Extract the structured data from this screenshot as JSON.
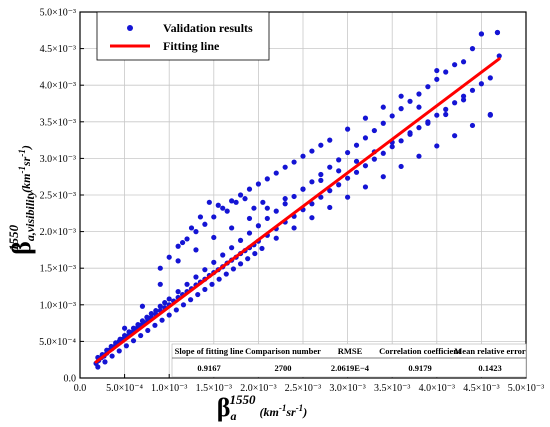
{
  "chart_data": {
    "type": "scatter",
    "xlabel": {
      "base": "β",
      "sub": "a",
      "sup": "1550",
      "unit": "(km",
      "unit_sup1": "-1",
      "unit_mid": "sr",
      "unit_sup2": "-1",
      "unit_end": ")"
    },
    "ylabel": {
      "base": "β",
      "sub": "a,visibility",
      "sup": "1550",
      "unit": "(km",
      "unit_sup1": "-1",
      "unit_mid": "sr",
      "unit_sup2": "-1",
      "unit_end": ")"
    },
    "xlim": [
      0,
      0.005
    ],
    "ylim": [
      0,
      0.005
    ],
    "x_ticks": [
      0,
      0.0005,
      0.001,
      0.0015,
      0.002,
      0.0025,
      0.003,
      0.0035,
      0.004,
      0.0045,
      0.005
    ],
    "x_tick_labels": [
      "0.0",
      "5.0×10⁻⁴",
      "1.0×10⁻³",
      "1.5×10⁻³",
      "2.0×10⁻³",
      "2.5×10⁻³",
      "3.0×10⁻³",
      "3.5×10⁻³",
      "4.0×10⁻³",
      "4.5×10⁻³",
      "5.0×10⁻³"
    ],
    "y_ticks": [
      0,
      0.0005,
      0.001,
      0.0015,
      0.002,
      0.0025,
      0.003,
      0.0035,
      0.004,
      0.0045,
      0.005
    ],
    "y_tick_labels": [
      "0.0",
      "5.0×10⁻⁴",
      "1.0×10⁻³",
      "1.5×10⁻³",
      "2.0×10⁻³",
      "2.5×10⁻³",
      "3.0×10⁻³",
      "3.5×10⁻³",
      "4.0×10⁻³",
      "4.5×10⁻³",
      "5.0×10⁻³"
    ],
    "grid": true,
    "legend_position": "top-left",
    "series": [
      {
        "name": "Validation results",
        "kind": "scatter",
        "color": "#1414d4",
        "x": [
          0.00018,
          0.00021,
          0.00024,
          0.00027,
          0.0003,
          0.00033,
          0.00036,
          0.0004,
          0.00044,
          0.00048,
          0.00052,
          0.00056,
          0.0006,
          0.00064,
          0.00068,
          0.00072,
          0.00076,
          0.0008,
          0.00085,
          0.0009,
          0.00095,
          0.001,
          0.00105,
          0.0011,
          0.00115,
          0.0012,
          0.00125,
          0.0013,
          0.00135,
          0.0014,
          0.00145,
          0.0015,
          0.00155,
          0.0016,
          0.00165,
          0.0017,
          0.00175,
          0.0018,
          0.00185,
          0.0019,
          0.00195,
          0.002,
          0.0021,
          0.0022,
          0.0023,
          0.0024,
          0.0025,
          0.0026,
          0.0027,
          0.0028,
          0.0029,
          0.003,
          0.0031,
          0.0032,
          0.0033,
          0.0034,
          0.0035,
          0.0036,
          0.0037,
          0.0038,
          0.0039,
          0.004,
          0.0041,
          0.0042,
          0.0043,
          0.0044,
          0.0045,
          0.0046,
          0.00468,
          0.0002,
          0.00025,
          0.0003,
          0.00035,
          0.0004,
          0.00045,
          0.0005,
          0.00055,
          0.0006,
          0.00065,
          0.0007,
          0.00075,
          0.0008,
          0.00085,
          0.0009,
          0.00095,
          0.001,
          0.0011,
          0.0012,
          0.0013,
          0.0014,
          0.0015,
          0.0016,
          0.0017,
          0.0018,
          0.0019,
          0.002,
          0.0021,
          0.0022,
          0.0023,
          0.0024,
          0.0025,
          0.0026,
          0.0027,
          0.0028,
          0.0029,
          0.003,
          0.0031,
          0.0032,
          0.0033,
          0.0034,
          0.0035,
          0.0036,
          0.0037,
          0.0038,
          0.0039,
          0.004,
          0.0041,
          0.0042,
          0.0043,
          0.0044,
          0.0045,
          0.0046,
          0.0047,
          0.0002,
          0.00028,
          0.00036,
          0.00044,
          0.00052,
          0.0006,
          0.00068,
          0.00076,
          0.00084,
          0.00092,
          0.001,
          0.00108,
          0.00116,
          0.00124,
          0.00132,
          0.0014,
          0.00148,
          0.00156,
          0.00164,
          0.00172,
          0.0018,
          0.00188,
          0.00196,
          0.00204,
          0.0022,
          0.0024,
          0.0026,
          0.0028,
          0.003,
          0.0032,
          0.0034,
          0.0036,
          0.0038,
          0.004,
          0.0042,
          0.0044,
          0.0046,
          0.0009,
          0.001,
          0.0011,
          0.0012,
          0.0013,
          0.0014,
          0.0015,
          0.0016,
          0.0017,
          0.0018,
          0.0019,
          0.002,
          0.0021,
          0.0022,
          0.0023,
          0.0024,
          0.0025,
          0.0026,
          0.0027,
          0.0028,
          0.003,
          0.0032,
          0.0034,
          0.0036,
          0.0038,
          0.004,
          0.00115,
          0.00125,
          0.00135,
          0.00145,
          0.00155,
          0.00165,
          0.00175,
          0.00185,
          0.00195,
          0.00205,
          0.0005,
          0.0007,
          0.0009,
          0.0011,
          0.0013,
          0.0015,
          0.0017,
          0.0019,
          0.0021,
          0.0023,
          0.0025,
          0.0027,
          0.0029,
          0.0031,
          0.0033,
          0.0035,
          0.0037,
          0.0039,
          0.0041,
          0.0043,
          0.0045,
          0.00468
        ],
        "y": [
          0.0002,
          0.00024,
          0.00028,
          0.0003,
          0.00034,
          0.00038,
          0.0004,
          0.00045,
          0.0005,
          0.00053,
          0.00057,
          0.0006,
          0.00064,
          0.00068,
          0.00072,
          0.00075,
          0.00079,
          0.00083,
          0.00087,
          0.00092,
          0.00096,
          0.001,
          0.00105,
          0.0011,
          0.00114,
          0.00118,
          0.00122,
          0.00127,
          0.00131,
          0.00135,
          0.0014,
          0.00144,
          0.00148,
          0.00152,
          0.00157,
          0.00161,
          0.00165,
          0.0017,
          0.00174,
          0.00178,
          0.00182,
          0.00187,
          0.00195,
          0.00204,
          0.00213,
          0.00221,
          0.0023,
          0.00238,
          0.00247,
          0.00256,
          0.00264,
          0.00273,
          0.00281,
          0.0029,
          0.00299,
          0.00307,
          0.00316,
          0.00324,
          0.00333,
          0.00342,
          0.0035,
          0.00359,
          0.00367,
          0.00376,
          0.00385,
          0.00393,
          0.00402,
          0.0041,
          0.00472,
          0.00028,
          0.00032,
          0.00038,
          0.00043,
          0.00048,
          0.00053,
          0.00058,
          0.00063,
          0.00068,
          0.00073,
          0.00078,
          0.00083,
          0.00088,
          0.00092,
          0.00098,
          0.00103,
          0.00108,
          0.00118,
          0.00128,
          0.00138,
          0.00148,
          0.00158,
          0.00168,
          0.00178,
          0.00188,
          0.00198,
          0.00208,
          0.00218,
          0.00228,
          0.00238,
          0.00248,
          0.00258,
          0.00268,
          0.00278,
          0.00288,
          0.00298,
          0.00308,
          0.00318,
          0.00328,
          0.00338,
          0.00348,
          0.00358,
          0.00368,
          0.00378,
          0.00388,
          0.00398,
          0.00408,
          0.00418,
          0.00428,
          0.00432,
          0.0045,
          0.0047,
          0.0036,
          0.0044,
          0.00015,
          0.00022,
          0.0003,
          0.00037,
          0.00044,
          0.00051,
          0.00058,
          0.00065,
          0.00072,
          0.00079,
          0.00086,
          0.00093,
          0.001,
          0.00107,
          0.00114,
          0.00121,
          0.00128,
          0.00135,
          0.00142,
          0.00149,
          0.00156,
          0.00163,
          0.0017,
          0.00177,
          0.00191,
          0.00205,
          0.00219,
          0.00233,
          0.00247,
          0.00261,
          0.00275,
          0.00289,
          0.00303,
          0.00317,
          0.00331,
          0.00345,
          0.00359,
          0.0015,
          0.00165,
          0.0018,
          0.0019,
          0.002,
          0.0021,
          0.0022,
          0.00232,
          0.00242,
          0.0025,
          0.00258,
          0.00265,
          0.00272,
          0.0028,
          0.00288,
          0.00295,
          0.00303,
          0.0031,
          0.00318,
          0.00325,
          0.0034,
          0.00355,
          0.0037,
          0.00385,
          0.0037,
          0.0042,
          0.00185,
          0.00205,
          0.0022,
          0.0024,
          0.00236,
          0.00228,
          0.0024,
          0.00245,
          0.00232,
          0.0024,
          0.00068,
          0.00098,
          0.00128,
          0.0016,
          0.00175,
          0.00192,
          0.00205,
          0.00218,
          0.00232,
          0.00245,
          0.00258,
          0.0027,
          0.00283,
          0.00296,
          0.00309,
          0.00322,
          0.00335,
          0.00348,
          0.0036,
          0.0038,
          0.0047,
          0.00472
        ]
      },
      {
        "name": "Fitting line",
        "kind": "line",
        "color": "#ff0000",
        "x": [
          0.00018,
          0.0047
        ],
        "y": [
          0.00022,
          0.00436
        ]
      }
    ],
    "stats_table": {
      "headers": [
        "Slope of fitting line",
        "Comparison number",
        "RMSE",
        "Correlation coefficient",
        "Mean relative error"
      ],
      "values": [
        "0.9167",
        "2700",
        "2.0619E−4",
        "0.9179",
        "0.1423"
      ]
    }
  }
}
